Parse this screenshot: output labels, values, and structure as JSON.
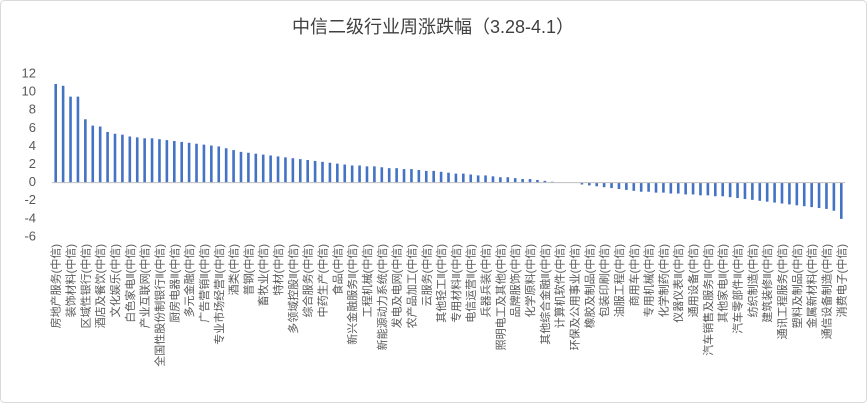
{
  "chart_data": {
    "type": "bar",
    "title": "中信二级行业周涨跌幅（3.28-4.1）",
    "categories": [
      "房地产服务(中信)",
      null,
      "装饰材料(中信)",
      null,
      "区域性银行(中信)",
      null,
      "酒店及餐饮(中信)",
      null,
      "文化娱乐(中信)",
      null,
      "白色家电Ⅱ(中信)",
      null,
      "产业互联网(中信)",
      null,
      "全国性股份制银行Ⅱ(中信)",
      null,
      "厨房电器Ⅱ(中信)",
      null,
      "多元金融(中信)",
      null,
      "广告营销Ⅱ(中信)",
      null,
      "专业市场经营Ⅱ(中信)",
      null,
      "酒类(中信)",
      null,
      "普钢(中信)",
      null,
      "畜牧业(中信)",
      null,
      "特材(中信)",
      null,
      "多领域控股Ⅱ(中信)",
      null,
      "综合服务(中信)",
      null,
      "中药生产(中信)",
      null,
      "食品(中信)",
      null,
      "新兴金融服务Ⅱ(中信)",
      null,
      "工程机械(中信)",
      null,
      "新能源动力系统(中信)",
      null,
      "发电及电网(中信)",
      null,
      "农产品加工(中信)",
      null,
      "云服务(中信)",
      null,
      "其他轻工Ⅱ(中信)",
      null,
      "专用材料Ⅱ(中信)",
      null,
      "电信运营Ⅱ(中信)",
      null,
      "兵器兵装(中信)",
      null,
      "照明电工及其他(中信)",
      null,
      "品牌服饰(中信)",
      null,
      "化学原料(中信)",
      null,
      "其他综合金融Ⅱ(中信)",
      null,
      "计算机软件(中信)",
      null,
      "环保及公用事业(中信)",
      null,
      "橡胶及制品(中信)",
      null,
      "包装印刷(中信)",
      null,
      "油服工程(中信)",
      null,
      "商用车(中信)",
      null,
      "专用机械(中信)",
      null,
      "化学制药(中信)",
      null,
      "仪器仪表Ⅱ(中信)",
      null,
      "通用设备(中信)",
      null,
      "汽车销售及服务Ⅱ(中信)",
      null,
      "其他家电Ⅱ(中信)",
      null,
      "汽车零部件Ⅱ(中信)",
      null,
      "纺织制造(中信)",
      null,
      "建筑装修Ⅱ(中信)",
      null,
      "通讯工程服务(中信)",
      null,
      "塑料及制品(中信)",
      null,
      "金属新材料(中信)",
      null,
      "通信设备制造(中信)",
      null,
      "消费电子(中信)"
    ],
    "values": [
      10.9,
      10.7,
      9.5,
      9.5,
      7.0,
      6.3,
      6.2,
      5.6,
      5.4,
      5.3,
      5.1,
      5.0,
      4.9,
      4.9,
      4.8,
      4.7,
      4.6,
      4.5,
      4.4,
      4.3,
      4.2,
      4.1,
      4.0,
      3.8,
      3.6,
      3.4,
      3.3,
      3.2,
      3.1,
      3.0,
      2.9,
      2.8,
      2.7,
      2.6,
      2.5,
      2.4,
      2.3,
      2.2,
      2.1,
      2.0,
      1.9,
      1.9,
      1.8,
      1.8,
      1.7,
      1.6,
      1.6,
      1.5,
      1.5,
      1.4,
      1.3,
      1.3,
      1.2,
      1.1,
      1.0,
      1.0,
      0.9,
      0.8,
      0.8,
      0.7,
      0.6,
      0.6,
      0.5,
      0.4,
      0.4,
      0.3,
      0.2,
      0.1,
      0,
      0,
      0,
      -0.2,
      -0.3,
      -0.4,
      -0.5,
      -0.6,
      -0.7,
      -0.8,
      -0.9,
      -1.0,
      -1.0,
      -1.1,
      -1.1,
      -1.2,
      -1.2,
      -1.3,
      -1.3,
      -1.4,
      -1.4,
      -1.5,
      -1.5,
      -1.6,
      -1.7,
      -1.8,
      -1.9,
      -2.0,
      -2.1,
      -2.2,
      -2.3,
      -2.4,
      -2.5,
      -2.6,
      -2.7,
      -2.8,
      -2.9,
      -3.1,
      -4.0
    ],
    "color": "#4472c4",
    "ylim": [
      -6,
      12
    ],
    "yticks": [
      -6,
      -4,
      -2,
      0,
      2,
      4,
      6,
      8,
      10,
      12
    ],
    "grid": false
  }
}
